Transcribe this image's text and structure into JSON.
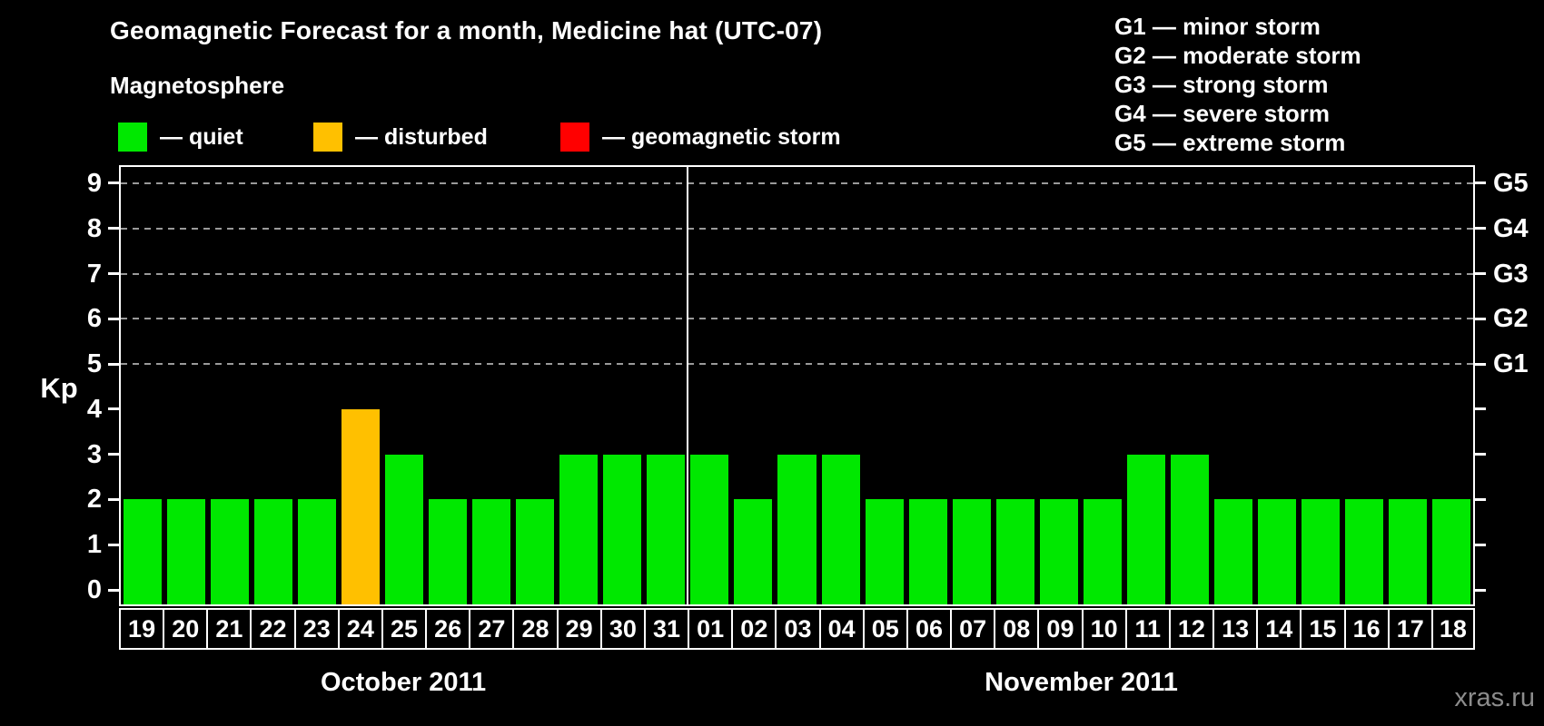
{
  "header": {
    "title": "Geomagnetic Forecast for a month, Medicine hat (UTC-07)",
    "magnetosphere_label": "Magnetosphere"
  },
  "kp_legend": [
    {
      "name": "quiet",
      "label": "— quiet",
      "color": "#00e800"
    },
    {
      "name": "disturbed",
      "label": "— disturbed",
      "color": "#ffc000"
    },
    {
      "name": "geomagnetic-storm",
      "label": "— geomagnetic storm",
      "color": "#ff0000"
    }
  ],
  "g_legend": [
    "G1 — minor storm",
    "G2 — moderate storm",
    "G3 — strong storm",
    "G4 — severe storm",
    "G5 — extreme storm"
  ],
  "watermark": "xras.ru",
  "chart_data": {
    "type": "bar",
    "title": "Geomagnetic Forecast for a month, Medicine hat (UTC-07)",
    "ylabel": "Kp",
    "ylim": [
      -0.32,
      9.36
    ],
    "yticks": [
      0,
      1,
      2,
      3,
      4,
      5,
      6,
      7,
      8,
      9
    ],
    "gridlines": [
      5,
      6,
      7,
      8,
      9
    ],
    "right_axis": [
      {
        "label": "G1",
        "value": 5
      },
      {
        "label": "G2",
        "value": 6
      },
      {
        "label": "G3",
        "value": 7
      },
      {
        "label": "G4",
        "value": 8
      },
      {
        "label": "G5",
        "value": 9
      }
    ],
    "state_colors": {
      "quiet": "#00e800",
      "disturbed": "#ffc000",
      "geomagnetic-storm": "#ff0000"
    },
    "months": [
      {
        "label": "October 2011",
        "days": [
          "19",
          "20",
          "21",
          "22",
          "23",
          "24",
          "25",
          "26",
          "27",
          "28",
          "29",
          "30",
          "31"
        ],
        "values": [
          2,
          2,
          2,
          2,
          2,
          4,
          3,
          2,
          2,
          2,
          3,
          3,
          3
        ],
        "states": [
          "quiet",
          "quiet",
          "quiet",
          "quiet",
          "quiet",
          "disturbed",
          "quiet",
          "quiet",
          "quiet",
          "quiet",
          "quiet",
          "quiet",
          "quiet"
        ]
      },
      {
        "label": "November 2011",
        "days": [
          "01",
          "02",
          "03",
          "04",
          "05",
          "06",
          "07",
          "08",
          "09",
          "10",
          "11",
          "12",
          "13",
          "14",
          "15",
          "16",
          "17",
          "18"
        ],
        "values": [
          3,
          2,
          3,
          3,
          2,
          2,
          2,
          2,
          2,
          2,
          3,
          3,
          2,
          2,
          2,
          2,
          2,
          2
        ],
        "states": [
          "quiet",
          "quiet",
          "quiet",
          "quiet",
          "quiet",
          "quiet",
          "quiet",
          "quiet",
          "quiet",
          "quiet",
          "quiet",
          "quiet",
          "quiet",
          "quiet",
          "quiet",
          "quiet",
          "quiet",
          "quiet"
        ]
      }
    ]
  }
}
